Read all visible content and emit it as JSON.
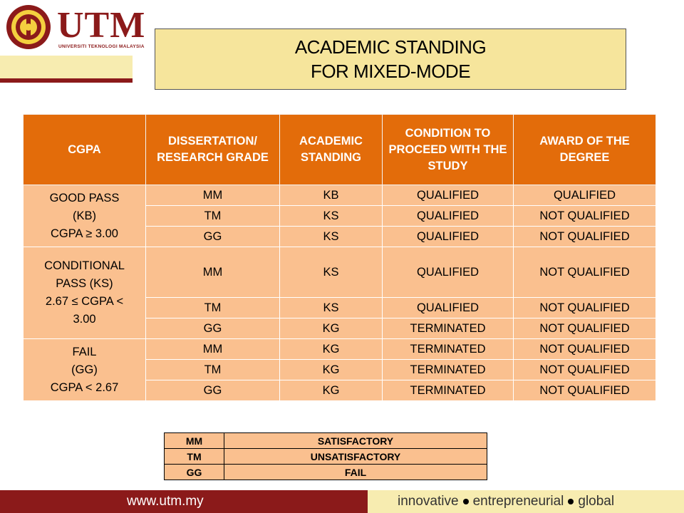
{
  "logo": {
    "text": "UTM",
    "subtitle": "UNIVERSITI TEKNOLOGI MALAYSIA"
  },
  "title": {
    "line1": "ACADEMIC STANDING",
    "line2": "FOR MIXED-MODE"
  },
  "table": {
    "headers": {
      "cgpa": "CGPA",
      "grade": "DISSERTATION/ RESEARCH GRADE",
      "standing": "ACADEMIC STANDING",
      "condition": "CONDITION TO PROCEED WITH THE STUDY",
      "award": "AWARD OF  THE DEGREE"
    },
    "groups": [
      {
        "label1": "GOOD PASS",
        "label2": "(KB)",
        "label3": "CGPA ≥ 3.00",
        "rows": [
          {
            "grade": "MM",
            "standing": "KB",
            "condition": "QUALIFIED",
            "award": "QUALIFIED"
          },
          {
            "grade": "TM",
            "standing": "KS",
            "condition": "QUALIFIED",
            "award": "NOT QUALIFIED"
          },
          {
            "grade": "GG",
            "standing": "KS",
            "condition": "QUALIFIED",
            "award": "NOT QUALIFIED"
          }
        ]
      },
      {
        "label1": "CONDITIONAL",
        "label2": "PASS (KS)",
        "label3": "2.67 ≤ CGPA <",
        "label4": "3.00",
        "rows": [
          {
            "grade": "MM",
            "standing": "KS",
            "condition": "QUALIFIED",
            "award": "NOT QUALIFIED"
          },
          {
            "grade": "TM",
            "standing": "KS",
            "condition": "QUALIFIED",
            "award": "NOT QUALIFIED"
          },
          {
            "grade": "GG",
            "standing": "KG",
            "condition": "TERMINATED",
            "award": "NOT QUALIFIED"
          }
        ]
      },
      {
        "label1": "FAIL",
        "label2": "(GG)",
        "label3": "CGPA < 2.67",
        "rows": [
          {
            "grade": "MM",
            "standing": "KG",
            "condition": "TERMINATED",
            "award": "NOT QUALIFIED"
          },
          {
            "grade": "TM",
            "standing": "KG",
            "condition": "TERMINATED",
            "award": "NOT QUALIFIED"
          },
          {
            "grade": "GG",
            "standing": "KG",
            "condition": "TERMINATED",
            "award": "NOT QUALIFIED"
          }
        ]
      }
    ]
  },
  "legend": [
    {
      "code": "MM",
      "meaning": "SATISFACTORY"
    },
    {
      "code": "TM",
      "meaning": "UNSATISFACTORY"
    },
    {
      "code": "GG",
      "meaning": "FAIL"
    }
  ],
  "footer": {
    "url": "www.utm.my",
    "tag1": "innovative",
    "tag2": "entrepreneurial",
    "tag3": "global"
  },
  "colors": {
    "brand": "#8b1a1a",
    "header_cell": "#e36c0a",
    "body_cell": "#fac08f",
    "title_bg": "#f6e59c"
  },
  "icons": [
    "utm-crest-icon"
  ]
}
